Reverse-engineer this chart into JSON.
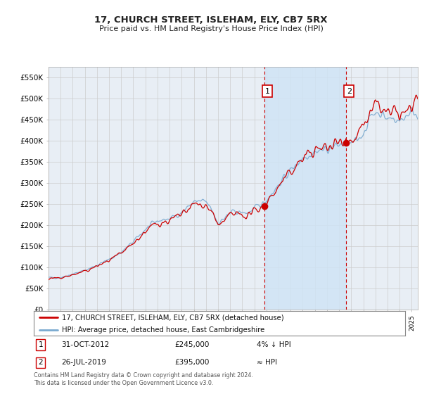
{
  "title": "17, CHURCH STREET, ISLEHAM, ELY, CB7 5RX",
  "subtitle": "Price paid vs. HM Land Registry's House Price Index (HPI)",
  "ylim": [
    0,
    575000
  ],
  "xlim_start": 1995.0,
  "xlim_end": 2025.5,
  "background_color": "#ffffff",
  "plot_bg_color": "#e8eef5",
  "grid_color": "#cccccc",
  "sale1_date": 2012.83,
  "sale1_price": 245000,
  "sale2_date": 2019.57,
  "sale2_price": 395000,
  "sale1_label": "1",
  "sale2_label": "2",
  "red_line_color": "#cc0000",
  "blue_line_color": "#7aaad0",
  "shade_color": "#d0e4f5",
  "legend_label_red": "17, CHURCH STREET, ISLEHAM, ELY, CB7 5RX (detached house)",
  "legend_label_blue": "HPI: Average price, detached house, East Cambridgeshire",
  "annotation1": [
    "1",
    "31-OCT-2012",
    "£245,000",
    "4% ↓ HPI"
  ],
  "annotation2": [
    "2",
    "26-JUL-2019",
    "£395,000",
    "≈ HPI"
  ],
  "footer": "Contains HM Land Registry data © Crown copyright and database right 2024.\nThis data is licensed under the Open Government Licence v3.0.",
  "yticks": [
    0,
    50000,
    100000,
    150000,
    200000,
    250000,
    300000,
    350000,
    400000,
    450000,
    500000,
    550000
  ],
  "ytick_labels": [
    "£0",
    "£50K",
    "£100K",
    "£150K",
    "£200K",
    "£250K",
    "£300K",
    "£350K",
    "£400K",
    "£450K",
    "£500K",
    "£550K"
  ],
  "num_points": 750,
  "hpi_seed": 42,
  "hpi_noise_scale": 0.012,
  "red_noise_scale": 0.018,
  "hpi_base": 75000,
  "hpi_anchors": [
    [
      1995.0,
      75000
    ],
    [
      1996.0,
      75500
    ],
    [
      1997.0,
      84000
    ],
    [
      1998.0,
      92000
    ],
    [
      1999.0,
      105000
    ],
    [
      2000.0,
      118000
    ],
    [
      2001.0,
      135000
    ],
    [
      2002.0,
      160000
    ],
    [
      2003.0,
      190000
    ],
    [
      2004.0,
      210000
    ],
    [
      2005.0,
      215000
    ],
    [
      2006.0,
      230000
    ],
    [
      2007.0,
      255000
    ],
    [
      2008.0,
      255000
    ],
    [
      2008.5,
      235000
    ],
    [
      2009.0,
      205000
    ],
    [
      2009.5,
      215000
    ],
    [
      2010.0,
      228000
    ],
    [
      2010.5,
      232000
    ],
    [
      2011.0,
      228000
    ],
    [
      2011.5,
      230000
    ],
    [
      2012.0,
      238000
    ],
    [
      2012.83,
      255000
    ],
    [
      2013.0,
      260000
    ],
    [
      2014.0,
      295000
    ],
    [
      2015.0,
      330000
    ],
    [
      2016.0,
      360000
    ],
    [
      2017.0,
      375000
    ],
    [
      2018.0,
      380000
    ],
    [
      2019.57,
      395000
    ],
    [
      2020.0,
      390000
    ],
    [
      2020.5,
      400000
    ],
    [
      2021.0,
      420000
    ],
    [
      2021.5,
      450000
    ],
    [
      2022.0,
      470000
    ],
    [
      2022.5,
      465000
    ],
    [
      2023.0,
      450000
    ],
    [
      2023.5,
      455000
    ],
    [
      2024.0,
      445000
    ],
    [
      2024.5,
      460000
    ],
    [
      2025.0,
      470000
    ],
    [
      2025.5,
      465000
    ]
  ]
}
